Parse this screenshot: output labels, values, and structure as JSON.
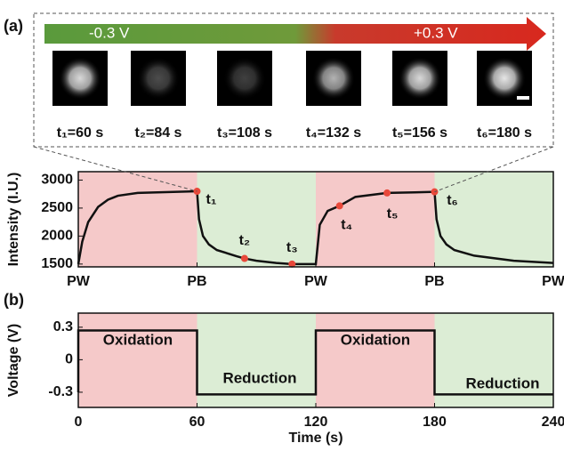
{
  "panel_a": {
    "label": "(a)",
    "voltage_start": "-0.3 V",
    "voltage_end": "+0.3 V",
    "frames": [
      "t₁=60 s",
      "t₂=84 s",
      "t₃=108 s",
      "t₄=132 s",
      "t₅=156 s",
      "t₆=180 s"
    ]
  },
  "chart_data": [
    {
      "type": "line",
      "ylabel": "Intensity (I.U.)",
      "color": "#111111",
      "x": [
        0,
        2,
        5,
        10,
        15,
        20,
        30,
        40,
        50,
        60,
        61,
        63,
        66,
        70,
        80,
        84,
        90,
        100,
        108,
        120,
        122,
        126,
        132,
        140,
        156,
        170,
        180,
        181,
        183,
        186,
        190,
        200,
        220,
        240
      ],
      "values": [
        1500,
        1900,
        2250,
        2520,
        2650,
        2720,
        2770,
        2780,
        2790,
        2800,
        2300,
        2000,
        1850,
        1750,
        1640,
        1600,
        1560,
        1520,
        1500,
        1500,
        2200,
        2450,
        2540,
        2700,
        2770,
        2780,
        2790,
        2300,
        2000,
        1850,
        1750,
        1650,
        1560,
        1520
      ],
      "xlim": [
        0,
        240
      ],
      "ylim": [
        1450,
        3150
      ],
      "yticks": [
        1500,
        2000,
        2500,
        3000
      ],
      "xticks": [
        {
          "value": 0,
          "label": "PW"
        },
        {
          "value": 60,
          "label": "PB"
        },
        {
          "value": 120,
          "label": "PW"
        },
        {
          "value": 180,
          "label": "PB"
        },
        {
          "value": 240,
          "label": "PW"
        }
      ],
      "shading": [
        "#f5c9c9",
        "#dcedd5",
        "#f5c9c9",
        "#dcedd5"
      ],
      "points": {
        "x": [
          60,
          84,
          108,
          132,
          156,
          180
        ],
        "values": [
          2800,
          1600,
          1500,
          2540,
          2770,
          2790
        ],
        "color": "#e8483a",
        "labels": [
          "t₁",
          "t₂",
          "t₃",
          "t₄",
          "t₅",
          "t₆"
        ]
      }
    },
    {
      "type": "line",
      "label": "(b)",
      "xlabel": "Time (s)",
      "ylabel": "Voltage (V)",
      "color": "#111111",
      "x": [
        0,
        0,
        60,
        60,
        120,
        120,
        180,
        180,
        240
      ],
      "values": [
        -0.3,
        0.27,
        0.27,
        -0.32,
        -0.32,
        0.27,
        0.27,
        -0.32,
        -0.32
      ],
      "xlim": [
        0,
        240
      ],
      "ylim": [
        -0.44,
        0.43
      ],
      "yticks": [
        -0.3,
        0,
        0.3
      ],
      "xticks": [
        0,
        60,
        120,
        180,
        240
      ],
      "shading": [
        "#f5c9c9",
        "#dcedd5",
        "#f5c9c9",
        "#dcedd5"
      ],
      "annotations": [
        "Oxidation",
        "Reduction",
        "Oxidation",
        "Reduction"
      ]
    }
  ]
}
